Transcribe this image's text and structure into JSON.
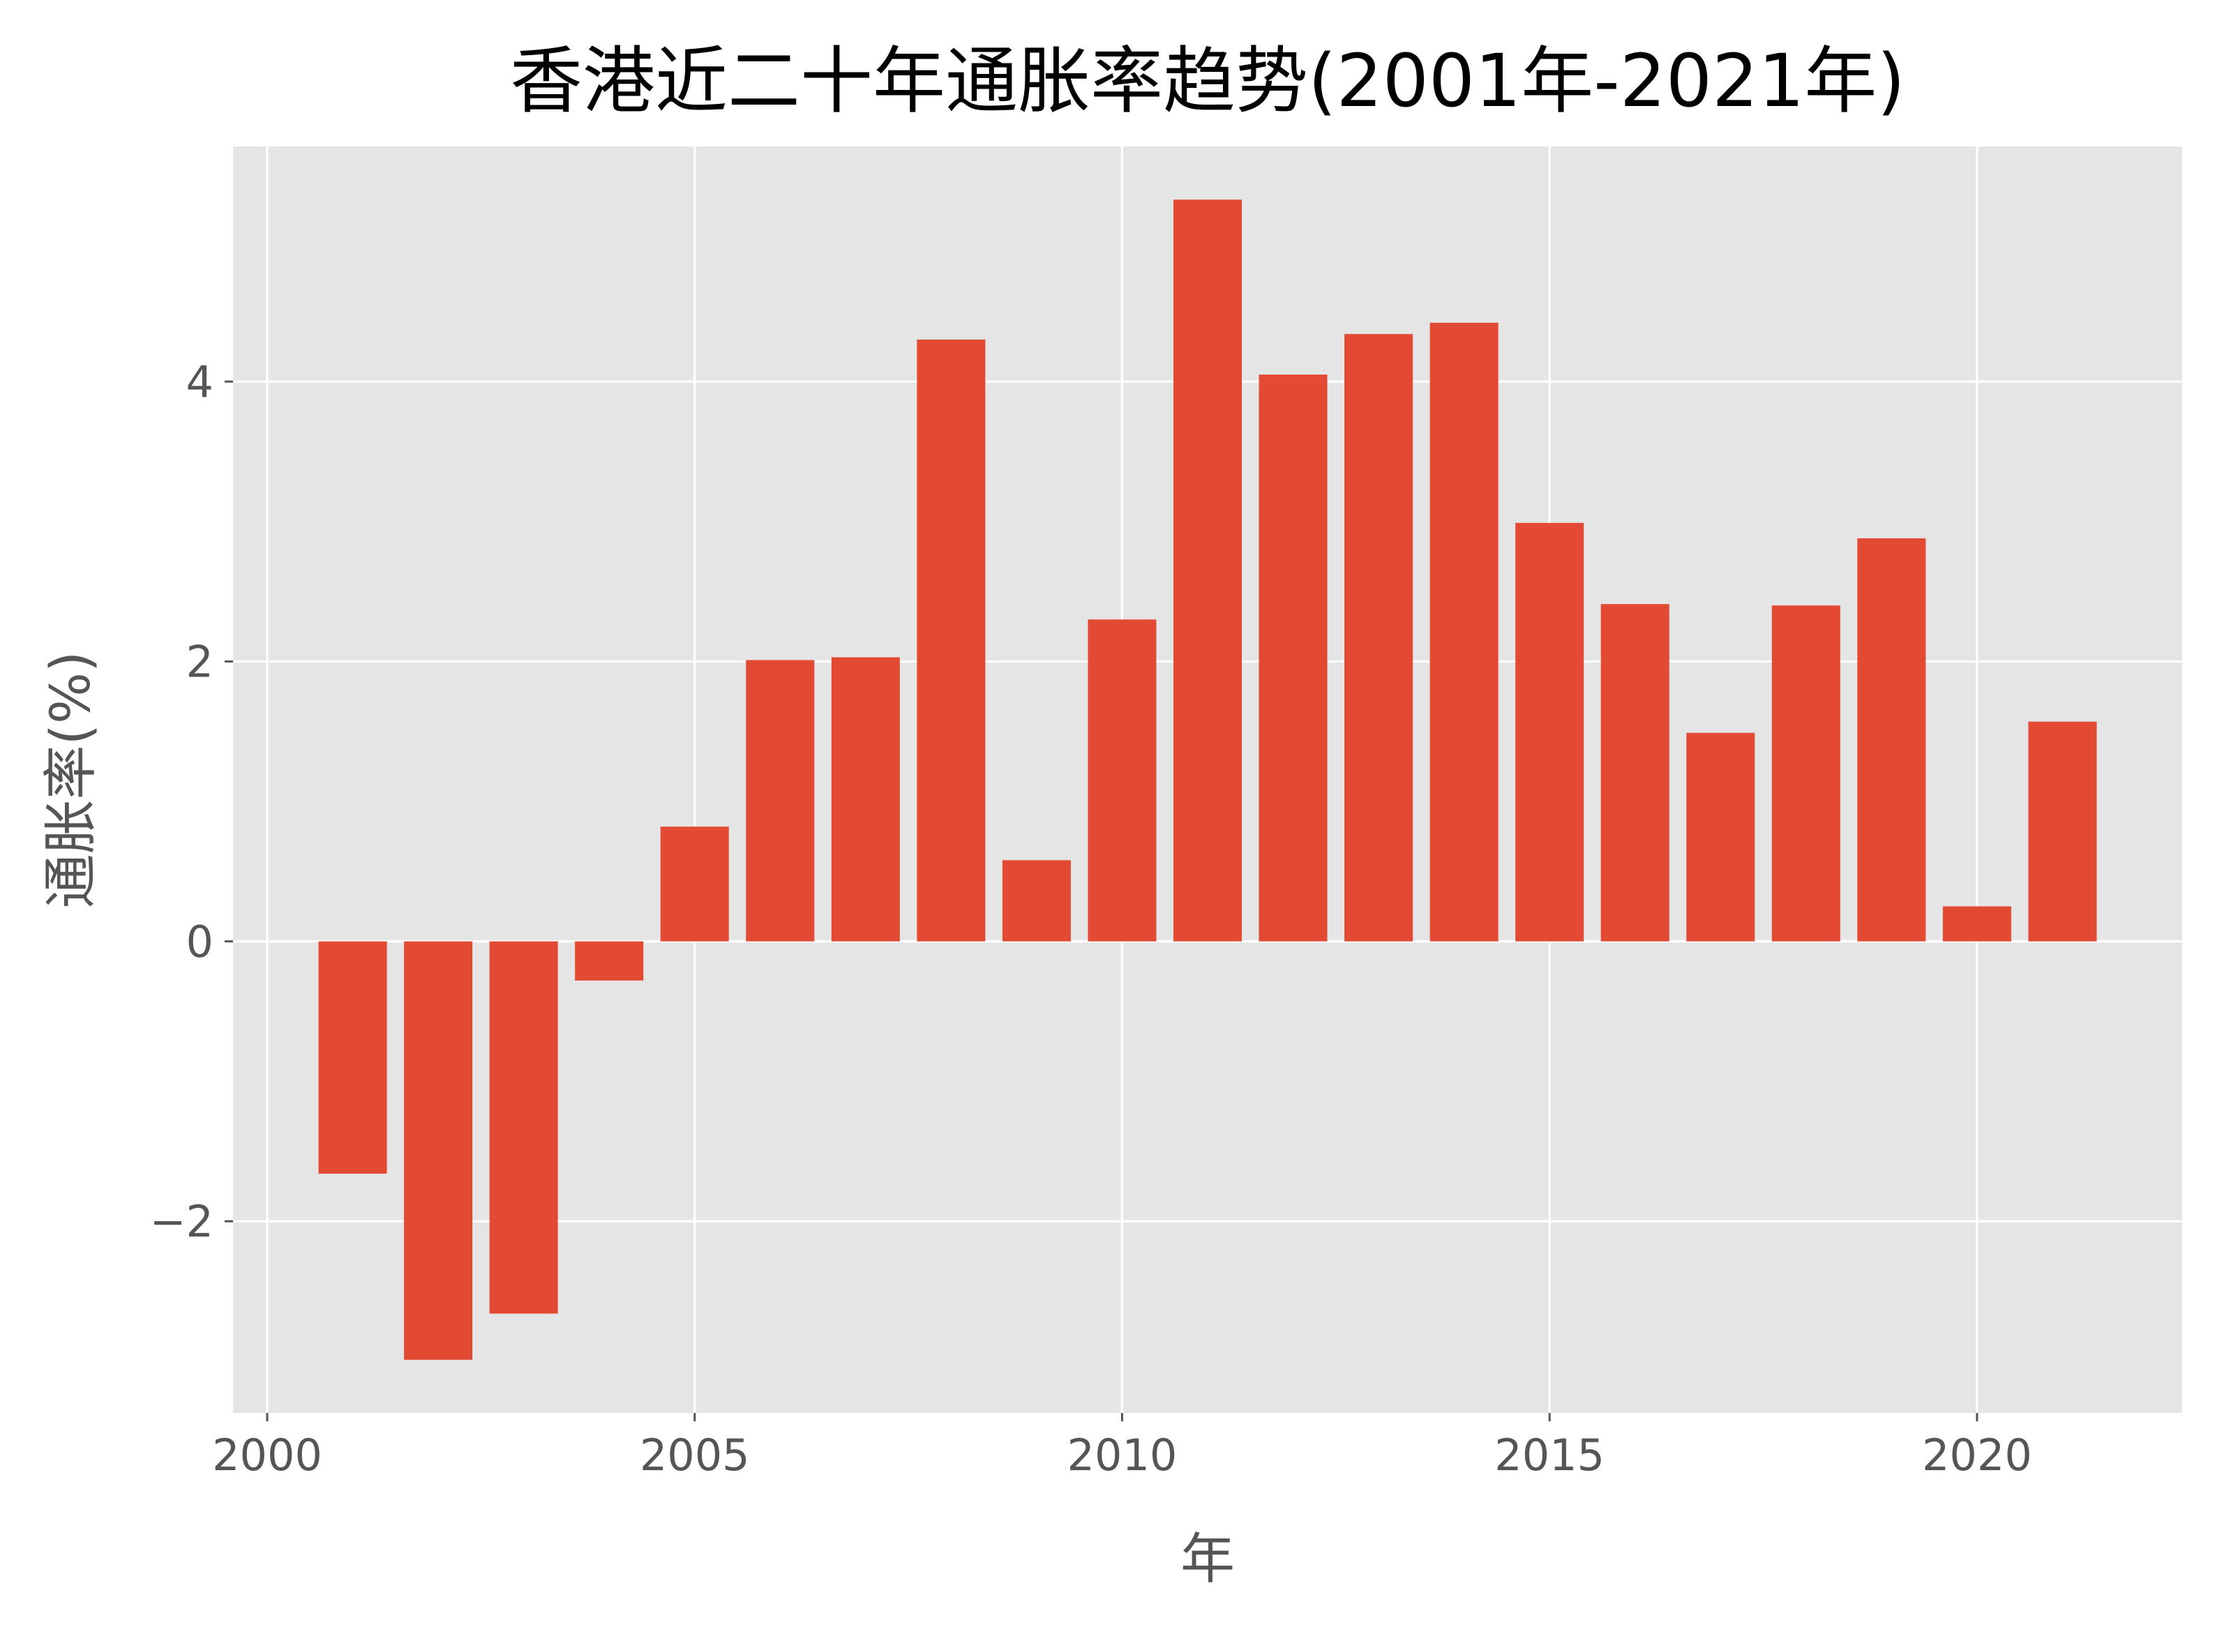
{
  "chart_data": {
    "type": "bar",
    "title": "香港近二十年通胀率趋势(2001年-2021年)",
    "xlabel": "年",
    "ylabel": "通胀率(%)",
    "x": [
      2001,
      2002,
      2003,
      2004,
      2005,
      2006,
      2007,
      2008,
      2009,
      2010,
      2011,
      2012,
      2013,
      2014,
      2015,
      2016,
      2017,
      2018,
      2019,
      2020,
      2021
    ],
    "values": [
      -1.66,
      -2.99,
      -2.66,
      -0.28,
      0.82,
      2.01,
      2.03,
      4.3,
      0.58,
      2.3,
      5.3,
      4.05,
      4.34,
      4.42,
      2.99,
      2.41,
      1.49,
      2.4,
      2.88,
      0.25,
      1.57
    ],
    "xlim": [
      1999.6,
      2022.4
    ],
    "ylim": [
      -3.37,
      5.68
    ],
    "xticks": [
      2000,
      2005,
      2010,
      2015,
      2020
    ],
    "xtick_labels": [
      "2000",
      "2005",
      "2010",
      "2015",
      "2020"
    ],
    "yticks": [
      -2,
      0,
      2,
      4
    ],
    "ytick_labels": [
      "−2",
      "0",
      "2",
      "4"
    ],
    "grid": true,
    "style": {
      "bar_color": "#E24A33",
      "plot_background": "#E5E5E5",
      "grid_color": "#FFFFFF",
      "tick_color": "#555555",
      "title_color": "#000000"
    }
  }
}
